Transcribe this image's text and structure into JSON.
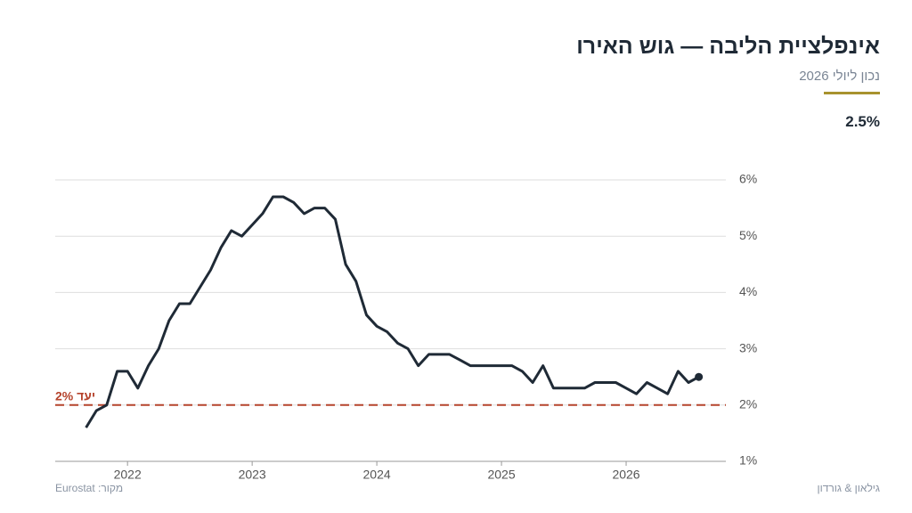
{
  "title": "אינפלציית הליבה — גוש האירו",
  "subtitle": "נכון ליולי 2026",
  "latest_label": "2.5%",
  "source": "מקור: Eurostat",
  "brand": "גילאון & גורדון",
  "chart_data": {
    "type": "line",
    "x": [
      2021.667,
      2021.75,
      2021.833,
      2021.917,
      2022,
      2022.083,
      2022.167,
      2022.25,
      2022.333,
      2022.417,
      2022.5,
      2022.583,
      2022.667,
      2022.75,
      2022.833,
      2022.917,
      2023,
      2023.083,
      2023.167,
      2023.25,
      2023.333,
      2023.417,
      2023.5,
      2023.583,
      2023.667,
      2023.75,
      2023.833,
      2023.917,
      2024,
      2024.083,
      2024.167,
      2024.25,
      2024.333,
      2024.417,
      2024.5,
      2024.583,
      2024.667,
      2024.75,
      2024.833,
      2024.917,
      2025,
      2025.083,
      2025.167,
      2025.25,
      2025.333,
      2025.417,
      2025.5,
      2025.583,
      2025.667,
      2025.75,
      2025.833,
      2025.917,
      2026,
      2026.083,
      2026.167,
      2026.25,
      2026.333,
      2026.417,
      2026.5,
      2026.583
    ],
    "series": [
      {
        "color": "#1f2a36",
        "values": [
          1.6,
          1.9,
          2.0,
          2.6,
          2.6,
          2.3,
          2.7,
          3.0,
          3.5,
          3.8,
          3.8,
          4.1,
          4.4,
          4.8,
          5.1,
          5.0,
          5.2,
          5.4,
          5.7,
          5.7,
          5.6,
          5.4,
          5.5,
          5.5,
          5.3,
          4.5,
          4.2,
          3.6,
          3.4,
          3.3,
          3.1,
          3.0,
          2.7,
          2.9,
          2.9,
          2.9,
          2.8,
          2.7,
          2.7,
          2.7,
          2.7,
          2.7,
          2.6,
          2.4,
          2.7,
          2.3,
          2.3,
          2.3,
          2.3,
          2.4,
          2.4,
          2.4,
          2.3,
          2.2,
          2.4,
          2.3,
          2.2,
          2.6,
          2.4,
          2.5
        ]
      }
    ],
    "xlim": [
      2021.42,
      2026.8
    ],
    "xticks": [
      2022,
      2023,
      2024,
      2025,
      2026
    ],
    "ylim": [
      1,
      6
    ],
    "yticks": [
      {
        "value": 1,
        "label": "1%"
      },
      {
        "value": 2,
        "label": "2%"
      },
      {
        "value": 3,
        "label": "3%"
      },
      {
        "value": 4,
        "label": "4%"
      },
      {
        "value": 5,
        "label": "5%"
      },
      {
        "value": 6,
        "label": "6%"
      }
    ],
    "target": {
      "value": 2,
      "label": "יעד 2%",
      "color": "#b5432c"
    },
    "grid": true
  }
}
